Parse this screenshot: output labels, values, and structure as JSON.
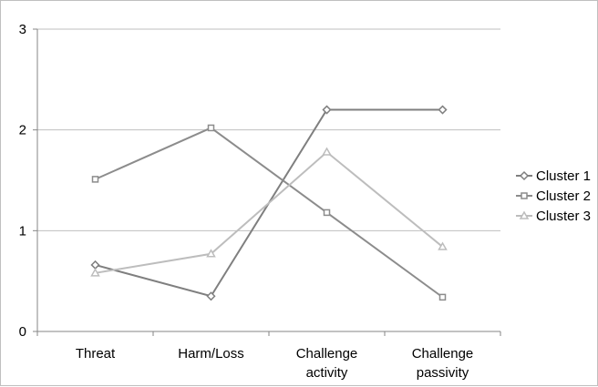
{
  "chart_data": {
    "type": "line",
    "title": "",
    "xlabel": "",
    "ylabel": "",
    "categories": [
      "Threat",
      "Harm/Loss",
      "Challenge activity",
      "Challenge passivity"
    ],
    "category_lines": [
      [
        "Threat"
      ],
      [
        "Harm/Loss"
      ],
      [
        "Challenge",
        "activity"
      ],
      [
        "Challenge",
        "passivity"
      ]
    ],
    "ylim": [
      0,
      3
    ],
    "yticks": [
      0,
      1,
      2,
      3
    ],
    "grid": true,
    "legend": "right",
    "series": [
      {
        "name": "Cluster 1",
        "marker": "diamond",
        "color": "#7f7f7f",
        "values": [
          0.66,
          0.35,
          2.2,
          2.2
        ]
      },
      {
        "name": "Cluster 2",
        "marker": "square",
        "color": "#8c8c8c",
        "values": [
          1.51,
          2.02,
          1.18,
          0.34
        ]
      },
      {
        "name": "Cluster 3",
        "marker": "triangle",
        "color": "#bdbdbd",
        "values": [
          0.58,
          0.77,
          1.78,
          0.84
        ]
      }
    ]
  }
}
